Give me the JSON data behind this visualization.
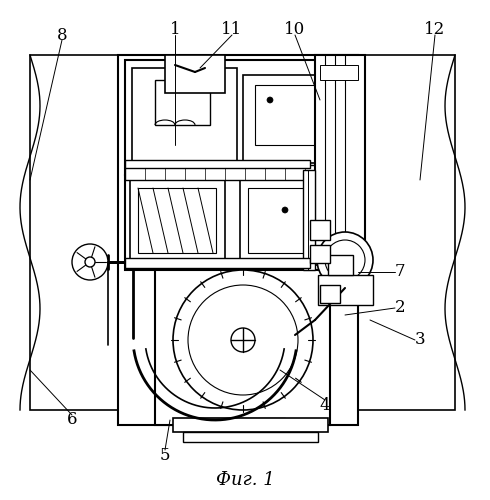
{
  "title": "Фиг. 1",
  "title_fontsize": 13,
  "background_color": "#ffffff",
  "line_color": "#000000",
  "fig_width": 4.9,
  "fig_height": 5.0,
  "dpi": 100
}
